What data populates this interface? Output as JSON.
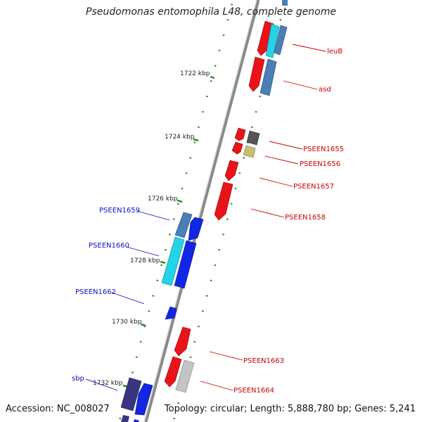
{
  "title": "Pseudomonas entomophila L48, complete genome",
  "footer": {
    "accession": "Accession: NC_008027",
    "summary": "Topology: circular; Length: 5,888,780 bp; Genes: 5,241"
  },
  "colors": {
    "backbone": "#8a8a8a",
    "tick": "#2e8b2e",
    "label_forward": "#cc0000",
    "label_reverse": "#1010c0",
    "feature_red": "#e8141a",
    "feature_blue": "#1226e6",
    "feature_steel": "#4a7fb8",
    "feature_cyan": "#22d4e6",
    "feature_darkgray": "#555555",
    "feature_khaki": "#c8c070",
    "feature_lightgray": "#c4c4c4",
    "feature_indigo": "#3a3580"
  },
  "kbp_labels": [
    "1722 kbp",
    "1724 kbp",
    "1726 kbp",
    "1728 kbp",
    "1730 kbp",
    "1732 kbp"
  ],
  "gene_labels_forward": [
    "leuB",
    "asd",
    "PSEEN1655",
    "PSEEN1656",
    "PSEEN1657",
    "PSEEN1658",
    "PSEEN1663",
    "PSEEN1664"
  ],
  "gene_labels_reverse": [
    "PSEEN1659",
    "PSEEN1660",
    "PSEEN1662",
    "sbp"
  ]
}
